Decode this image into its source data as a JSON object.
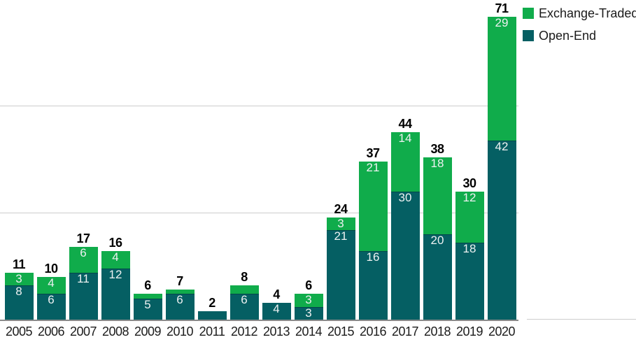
{
  "chart_data": {
    "type": "bar",
    "stacked": true,
    "title": "",
    "xlabel": "",
    "ylabel": "",
    "categories": [
      "2005",
      "2006",
      "2007",
      "2008",
      "2009",
      "2010",
      "2011",
      "2012",
      "2013",
      "2014",
      "2015",
      "2016",
      "2017",
      "2018",
      "2019",
      "2020"
    ],
    "series": [
      {
        "name": "Exchange-Traded",
        "color": "#10AC4B",
        "values": [
          3,
          4,
          6,
          4,
          1,
          1,
          0,
          2,
          0,
          3,
          3,
          21,
          14,
          18,
          12,
          29
        ]
      },
      {
        "name": "Open-End",
        "color": "#055F63",
        "values": [
          8,
          6,
          11,
          12,
          5,
          6,
          2,
          6,
          4,
          3,
          21,
          16,
          30,
          20,
          18,
          42
        ]
      }
    ],
    "totals": [
      11,
      10,
      17,
      16,
      6,
      7,
      2,
      8,
      4,
      6,
      24,
      37,
      44,
      38,
      30,
      71
    ],
    "ylim": [
      0,
      75
    ],
    "gridline_values": [
      25,
      50
    ],
    "legend_position": "top-right",
    "grid_on": true,
    "value_label_min": 3,
    "colors": {
      "grid": "#cccccc",
      "axis": "#8a8a8a",
      "axis_extension": "#cdcdcd",
      "total_label": "#000000",
      "segment_label": "#edf1f1",
      "year_label": "#1c1c1c",
      "legend_text": "#1a1a1a",
      "segment_divider": "rgba(0,0,0,0.25)"
    }
  }
}
